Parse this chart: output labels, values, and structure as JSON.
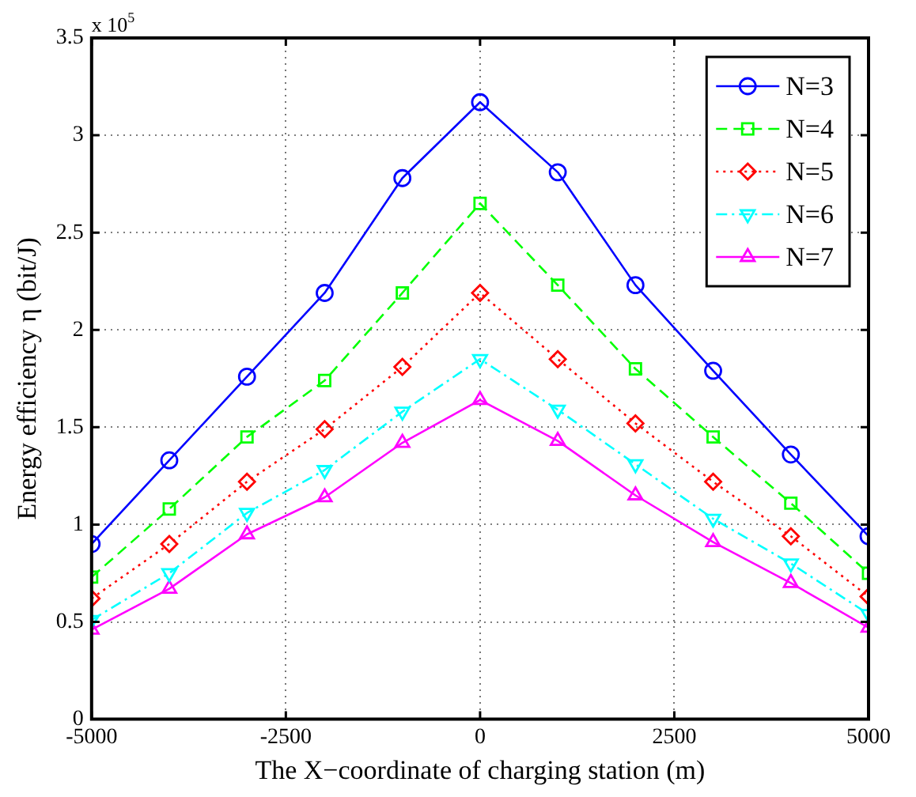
{
  "chart_data": {
    "type": "line",
    "xlabel": "The X−coordinate of charging station (m)",
    "ylabel": "Energy efficiency η (bit/J)",
    "annotations": [
      "x 10$^{5}$"
    ],
    "x": [
      -5000,
      -4000,
      -3000,
      -2000,
      -1000,
      0,
      1000,
      2000,
      3000,
      4000,
      5000
    ],
    "xlim": [
      -5000,
      5000
    ],
    "xticks": [
      -5000,
      -2500,
      0,
      2500,
      5000
    ],
    "ylim": [
      0,
      3.5
    ],
    "yticks": [
      0,
      0.5,
      1,
      1.5,
      2,
      2.5,
      3,
      3.5
    ],
    "grid": true,
    "legend": "top right",
    "series": [
      {
        "name": "N=3",
        "color": "#0000ff",
        "marker": "circle",
        "line_style": "solid",
        "values": [
          0.9,
          1.33,
          1.76,
          2.19,
          2.78,
          3.17,
          2.81,
          2.23,
          1.79,
          1.36,
          0.94
        ]
      },
      {
        "name": "N=4",
        "color": "#00ff00",
        "marker": "square",
        "line_style": "dashed",
        "values": [
          0.73,
          1.08,
          1.45,
          1.74,
          2.19,
          2.65,
          2.23,
          1.8,
          1.45,
          1.11,
          0.75
        ]
      },
      {
        "name": "N=5",
        "color": "#ff0000",
        "marker": "diamond",
        "line_style": "dotted",
        "values": [
          0.62,
          0.9,
          1.22,
          1.49,
          1.81,
          2.19,
          1.85,
          1.52,
          1.22,
          0.94,
          0.63
        ]
      },
      {
        "name": "N=6",
        "color": "#00ffff",
        "marker": "triangle-down",
        "line_style": "dashdot",
        "values": [
          0.51,
          0.75,
          1.06,
          1.28,
          1.58,
          1.85,
          1.59,
          1.31,
          1.03,
          0.8,
          0.54
        ]
      },
      {
        "name": "N=7",
        "color": "#ff00ff",
        "marker": "triangle",
        "line_style": "solid",
        "values": [
          0.46,
          0.67,
          0.95,
          1.14,
          1.42,
          1.64,
          1.43,
          1.15,
          0.91,
          0.7,
          0.47
        ]
      }
    ]
  }
}
